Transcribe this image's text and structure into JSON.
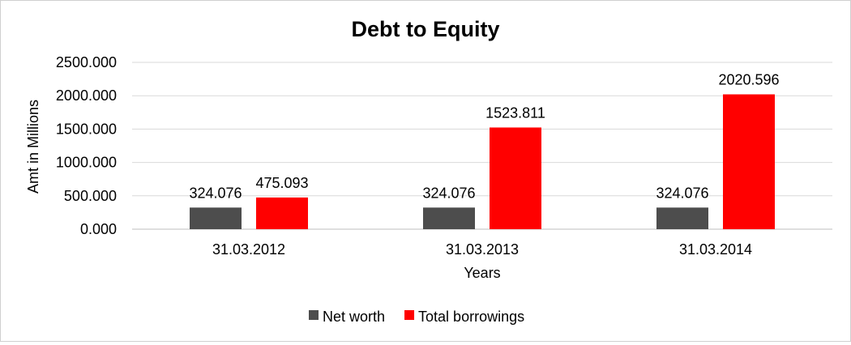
{
  "chart_data": {
    "type": "bar",
    "title": "Debt to Equity",
    "xlabel": "Years",
    "ylabel": "Amt in Millions",
    "categories": [
      "31.03.2012",
      "31.03.2013",
      "31.03.2014"
    ],
    "series": [
      {
        "name": "Net worth",
        "color": "#4d4d4d",
        "values": [
          324.076,
          324.076,
          324.076
        ],
        "labels": [
          "324.076",
          "324.076",
          "324.076"
        ]
      },
      {
        "name": "Total borrowings",
        "color": "#ff0000",
        "values": [
          475.093,
          1523.811,
          2020.596
        ],
        "labels": [
          "475.093",
          "1523.811",
          "2020.596"
        ]
      }
    ],
    "ylim": [
      0,
      2500
    ],
    "yticks": [
      "0.000",
      "500.000",
      "1000.000",
      "1500.000",
      "2000.000",
      "2500.000"
    ],
    "grid": true,
    "legend_position": "bottom"
  }
}
